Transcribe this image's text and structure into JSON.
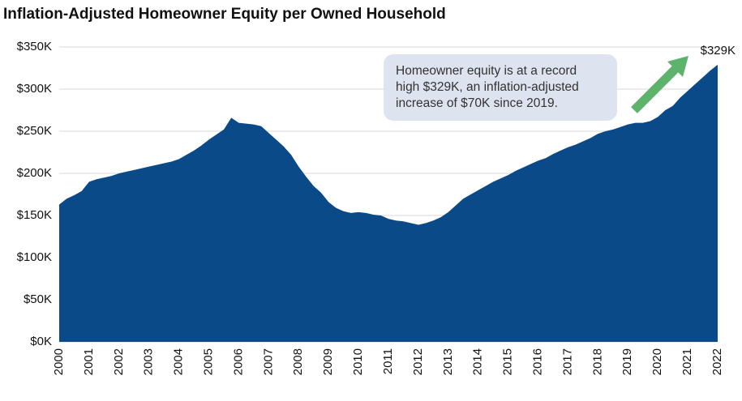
{
  "chart_data": {
    "type": "area",
    "title": "Inflation-Adjusted  Homeowner Equity per Owned Household",
    "categories": [
      "2000",
      null,
      null,
      null,
      "2001",
      null,
      null,
      null,
      "2002",
      null,
      null,
      null,
      "2003",
      null,
      null,
      null,
      "2004",
      null,
      null,
      null,
      "2005",
      null,
      null,
      null,
      "2006",
      null,
      null,
      null,
      "2007",
      null,
      null,
      null,
      "2008",
      null,
      null,
      null,
      "2009",
      null,
      null,
      null,
      "2010",
      null,
      null,
      null,
      "2011",
      null,
      null,
      null,
      "2012",
      null,
      null,
      null,
      "2013",
      null,
      null,
      null,
      "2014",
      null,
      null,
      null,
      "2015",
      null,
      null,
      null,
      "2016",
      null,
      null,
      null,
      "2017",
      null,
      null,
      null,
      "2018",
      null,
      null,
      null,
      "2019",
      null,
      null,
      null,
      "2020",
      null,
      null,
      null,
      "2021",
      null,
      null,
      null,
      "2022"
    ],
    "values": [
      163000,
      170000,
      174000,
      179000,
      190000,
      193000,
      195000,
      197000,
      200000,
      202000,
      204000,
      206000,
      208000,
      210000,
      212000,
      214000,
      217000,
      222000,
      227000,
      233000,
      240000,
      246000,
      252000,
      266000,
      260000,
      259000,
      258000,
      256000,
      248000,
      240000,
      232000,
      222000,
      208000,
      196000,
      185000,
      177000,
      166000,
      159000,
      155000,
      153000,
      154000,
      153000,
      151000,
      150000,
      146000,
      144000,
      143000,
      141000,
      139000,
      141000,
      144000,
      148000,
      154000,
      162000,
      170000,
      175000,
      180000,
      185000,
      190000,
      194000,
      198000,
      203000,
      207000,
      211000,
      215000,
      218000,
      223000,
      227000,
      231000,
      234000,
      238000,
      242000,
      247000,
      250000,
      252000,
      255000,
      258000,
      260000,
      260000,
      262000,
      267000,
      275000,
      280000,
      290000,
      298000,
      306000,
      314000,
      322000,
      329000
    ],
    "color": "#0b4a89",
    "ylim": [
      0,
      350000
    ],
    "yticks": [
      {
        "value": 0,
        "label": "$0K"
      },
      {
        "value": 50000,
        "label": "$50K"
      },
      {
        "value": 100000,
        "label": "$100K"
      },
      {
        "value": 150000,
        "label": "$150K"
      },
      {
        "value": 200000,
        "label": "$200K"
      },
      {
        "value": 250000,
        "label": "$250K"
      },
      {
        "value": 300000,
        "label": "$300K"
      },
      {
        "value": 350000,
        "label": "$350K"
      }
    ],
    "grid": true,
    "end_label": "$329K",
    "annotation": [
      "Homeowner equity is at a record",
      "high $329K, an inflation-adjusted",
      "increase of $70K since 2019."
    ]
  }
}
